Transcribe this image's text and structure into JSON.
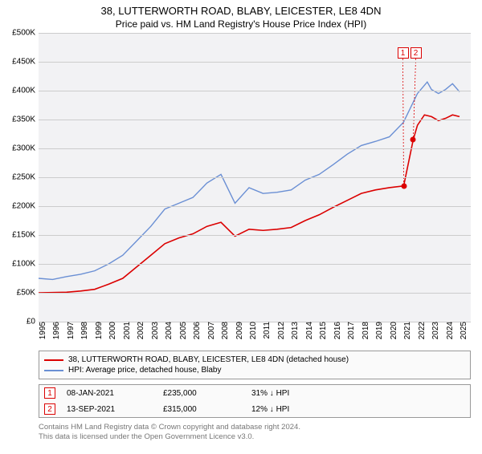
{
  "title": "38, LUTTERWORTH ROAD, BLABY, LEICESTER, LE8 4DN",
  "subtitle": "Price paid vs. HM Land Registry's House Price Index (HPI)",
  "chart": {
    "type": "line",
    "background_color": "#f2f2f4",
    "grid_color": "#cccccc",
    "ylim": [
      0,
      500000
    ],
    "ytick_step": 50000,
    "yticks": [
      "£0",
      "£50K",
      "£100K",
      "£150K",
      "£200K",
      "£250K",
      "£300K",
      "£350K",
      "£400K",
      "£450K",
      "£500K"
    ],
    "xlim": [
      1995,
      2025.8
    ],
    "xticks": [
      "1995",
      "1996",
      "1997",
      "1998",
      "1999",
      "2000",
      "2001",
      "2002",
      "2003",
      "2004",
      "2005",
      "2006",
      "2007",
      "2008",
      "2009",
      "2010",
      "2011",
      "2012",
      "2013",
      "2014",
      "2015",
      "2016",
      "2017",
      "2018",
      "2019",
      "2020",
      "2021",
      "2022",
      "2023",
      "2024",
      "2025"
    ],
    "series": [
      {
        "name": "price_paid",
        "color": "#db0000",
        "line_width": 1.6,
        "points": [
          [
            1995,
            50000
          ],
          [
            1996,
            50500
          ],
          [
            1997,
            51000
          ],
          [
            1998,
            53000
          ],
          [
            1999,
            56000
          ],
          [
            2000,
            65000
          ],
          [
            2001,
            75000
          ],
          [
            2002,
            95000
          ],
          [
            2003,
            115000
          ],
          [
            2004,
            135000
          ],
          [
            2005,
            145000
          ],
          [
            2006,
            152000
          ],
          [
            2007,
            165000
          ],
          [
            2008,
            172000
          ],
          [
            2009,
            148000
          ],
          [
            2010,
            160000
          ],
          [
            2011,
            158000
          ],
          [
            2012,
            160000
          ],
          [
            2013,
            163000
          ],
          [
            2014,
            175000
          ],
          [
            2015,
            185000
          ],
          [
            2016,
            198000
          ],
          [
            2017,
            210000
          ],
          [
            2018,
            222000
          ],
          [
            2019,
            228000
          ],
          [
            2020,
            232000
          ],
          [
            2021.02,
            235000
          ],
          [
            2021.7,
            315000
          ],
          [
            2022,
            340000
          ],
          [
            2022.5,
            358000
          ],
          [
            2023,
            355000
          ],
          [
            2023.5,
            348000
          ],
          [
            2024,
            352000
          ],
          [
            2024.5,
            358000
          ],
          [
            2025,
            355000
          ]
        ]
      },
      {
        "name": "hpi",
        "color": "#6a8fd4",
        "line_width": 1.4,
        "points": [
          [
            1995,
            75000
          ],
          [
            1996,
            73000
          ],
          [
            1997,
            78000
          ],
          [
            1998,
            82000
          ],
          [
            1999,
            88000
          ],
          [
            2000,
            100000
          ],
          [
            2001,
            115000
          ],
          [
            2002,
            140000
          ],
          [
            2003,
            165000
          ],
          [
            2004,
            195000
          ],
          [
            2005,
            205000
          ],
          [
            2006,
            215000
          ],
          [
            2007,
            240000
          ],
          [
            2008,
            255000
          ],
          [
            2009,
            205000
          ],
          [
            2010,
            232000
          ],
          [
            2011,
            222000
          ],
          [
            2012,
            224000
          ],
          [
            2013,
            228000
          ],
          [
            2014,
            245000
          ],
          [
            2015,
            255000
          ],
          [
            2016,
            272000
          ],
          [
            2017,
            290000
          ],
          [
            2018,
            305000
          ],
          [
            2019,
            312000
          ],
          [
            2020,
            320000
          ],
          [
            2021,
            345000
          ],
          [
            2022,
            395000
          ],
          [
            2022.7,
            415000
          ],
          [
            2023,
            402000
          ],
          [
            2023.5,
            395000
          ],
          [
            2024,
            402000
          ],
          [
            2024.5,
            412000
          ],
          [
            2025,
            398000
          ]
        ]
      }
    ],
    "sale_markers": [
      {
        "label": "1",
        "x": 2021.02,
        "y": 235000,
        "color": "#db0000"
      },
      {
        "label": "2",
        "x": 2021.7,
        "y": 315000,
        "color": "#db0000"
      }
    ],
    "legend": {
      "items": [
        {
          "color": "#db0000",
          "label": "38, LUTTERWORTH ROAD, BLABY, LEICESTER, LE8 4DN (detached house)"
        },
        {
          "color": "#6a8fd4",
          "label": "HPI: Average price, detached house, Blaby"
        }
      ]
    }
  },
  "sales_table": [
    {
      "marker": "1",
      "date": "08-JAN-2021",
      "price": "£235,000",
      "pct": "31% ↓ HPI"
    },
    {
      "marker": "2",
      "date": "13-SEP-2021",
      "price": "£315,000",
      "pct": "12% ↓ HPI"
    }
  ],
  "footer_line1": "Contains HM Land Registry data © Crown copyright and database right 2024.",
  "footer_line2": "This data is licensed under the Open Government Licence v3.0.",
  "label_fontsize": 10,
  "title_fontsize": 13
}
